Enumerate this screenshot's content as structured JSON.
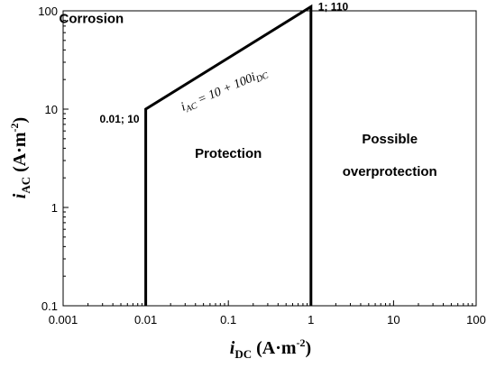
{
  "chart_data": {
    "type": "line",
    "x_scale": "log",
    "y_scale": "log",
    "xlim": [
      0.001,
      100
    ],
    "ylim": [
      0.1,
      100
    ],
    "x_ticks": [
      0.001,
      0.01,
      0.1,
      1,
      10,
      100
    ],
    "x_tick_labels": [
      "0.001",
      "0.01",
      "0.1",
      "1",
      "10",
      "100"
    ],
    "y_ticks": [
      0.1,
      1,
      10,
      100
    ],
    "y_tick_labels": [
      "0.1",
      "1",
      "10",
      "100"
    ],
    "grid": false,
    "xlabel": {
      "main": "i",
      "sub": "DC",
      "units": " (A·m",
      "sup": "-2",
      "close": ")"
    },
    "ylabel": {
      "main": "i",
      "sub": "AC",
      "units": " (A·m",
      "sup": "-2",
      "close": ")"
    },
    "boundary": {
      "x": [
        0.01,
        0.01,
        1,
        1
      ],
      "y": [
        0.1,
        10,
        110,
        0.1
      ],
      "color": "#000000"
    },
    "regions": [
      {
        "label": "Corrosion",
        "x": 0.0022,
        "y": 75
      },
      {
        "label": "Protection",
        "x": 0.1,
        "y": 3.2
      },
      {
        "label": "Possible",
        "x": 9,
        "y": 4.5
      },
      {
        "label": "overprotection",
        "x": 9,
        "y": 2.1
      }
    ],
    "point_labels": [
      {
        "text": "0.01; 10",
        "x": 0.01,
        "y": 10
      },
      {
        "text": "1; 110",
        "x": 1,
        "y": 110
      }
    ],
    "equation": {
      "text": "i",
      "sub1": "AC",
      "mid": " = 10 + 100i",
      "sub2": "DC"
    }
  }
}
